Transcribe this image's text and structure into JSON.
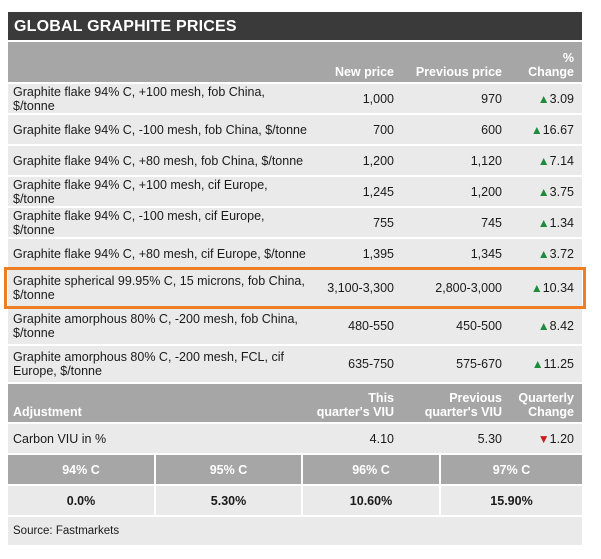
{
  "title": "GLOBAL GRAPHITE PRICES",
  "header": {
    "new_price": "New price",
    "previous_price": "Previous price",
    "change_line1": "%",
    "change_line2": "Change"
  },
  "rows": [
    {
      "product": "Graphite flake 94% C, +100 mesh, fob China, $/tonne",
      "new": "1,000",
      "prev": "970",
      "dir": "up",
      "change": "3.09"
    },
    {
      "product": "Graphite flake 94% C, -100 mesh, fob China, $/tonne",
      "new": "700",
      "prev": "600",
      "dir": "up",
      "change": "16.67"
    },
    {
      "product": "Graphite flake 94% C, +80 mesh, fob China, $/tonne",
      "new": "1,200",
      "prev": "1,120",
      "dir": "up",
      "change": "7.14"
    },
    {
      "product": "Graphite flake 94% C, +100 mesh, cif Europe, $/tonne",
      "new": "1,245",
      "prev": "1,200",
      "dir": "up",
      "change": "3.75"
    },
    {
      "product": "Graphite flake 94% C, -100 mesh, cif Europe, $/tonne",
      "new": "755",
      "prev": "745",
      "dir": "up",
      "change": "1.34"
    },
    {
      "product": "Graphite flake 94% C, +80 mesh, cif Europe, $/tonne",
      "new": "1,395",
      "prev": "1,345",
      "dir": "up",
      "change": "3.72"
    },
    {
      "product": "Graphite spherical 99.95% C, 15 microns, fob China, $/tonne",
      "new": "3,100-3,300",
      "prev": "2,800-3,000",
      "dir": "up",
      "change": "10.34"
    },
    {
      "product": "Graphite amorphous 80% C, -200 mesh, fob China, $/tonne",
      "new": "480-550",
      "prev": "450-500",
      "dir": "up",
      "change": "8.42"
    },
    {
      "product": "Graphite amorphous 80% C, -200 mesh, FCL, cif Europe, $/tonne",
      "new": "635-750",
      "prev": "575-670",
      "dir": "up",
      "change": "11.25"
    }
  ],
  "adjustment": {
    "label": "Adjustment",
    "this_viu_1": "This",
    "this_viu_2": "quarter's VIU",
    "prev_viu_1": "Previous",
    "prev_viu_2": "quarter's VIU",
    "qchange_1": "Quarterly",
    "qchange_2": "Change",
    "carbon_label": "Carbon VIU in %",
    "carbon_this": "4.10",
    "carbon_prev": "5.30",
    "carbon_dir": "down",
    "carbon_change": "1.20"
  },
  "grades": {
    "headers": [
      "94% C",
      "95% C",
      "96% C",
      "97% C"
    ],
    "values": [
      "0.0%",
      "5.30%",
      "10.60%",
      "15.90%"
    ]
  },
  "source": "Source: Fastmarkets",
  "colors": {
    "title_bg": "#3a3a3a",
    "header_bg": "#a6a6a6",
    "row_bg": "#eaeaea",
    "up_arrow": "#1f8a3c",
    "down_arrow": "#c81d1d",
    "highlight": "#ef7d22"
  }
}
